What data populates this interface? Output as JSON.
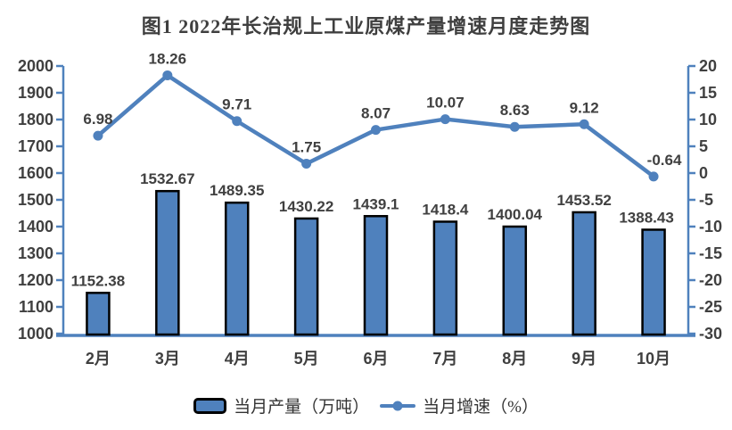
{
  "chart_data": {
    "type": "combo-bar-line",
    "title": "图1 2022年长治规上工业原煤产量增速月度走势图",
    "categories": [
      "2月",
      "3月",
      "4月",
      "5月",
      "6月",
      "7月",
      "8月",
      "9月",
      "10月"
    ],
    "series": [
      {
        "name": "当月产量（万吨）",
        "type": "bar",
        "axis": "left",
        "values": [
          1152.38,
          1532.67,
          1489.35,
          1430.22,
          1439.1,
          1418.4,
          1400.04,
          1453.52,
          1388.43
        ],
        "labels": [
          "1152.38",
          "1532.67",
          "1489.35",
          "1430.22",
          "1439.1",
          "1418.4",
          "1400.04",
          "1453.52",
          "1388.43"
        ]
      },
      {
        "name": "当月增速（%）",
        "type": "line",
        "axis": "right",
        "values": [
          6.98,
          18.26,
          9.71,
          1.75,
          8.07,
          10.07,
          8.63,
          9.12,
          -0.64
        ],
        "labels": [
          "6.98",
          "18.26",
          "9.71",
          "1.75",
          "8.07",
          "10.07",
          "8.63",
          "9.12",
          "-0.64"
        ]
      }
    ],
    "left_axis": {
      "min": 1000,
      "max": 2000,
      "step": 100,
      "ticks": [
        "1000",
        "1100",
        "1200",
        "1300",
        "1400",
        "1500",
        "1600",
        "1700",
        "1800",
        "1900",
        "2000"
      ]
    },
    "right_axis": {
      "min": -30,
      "max": 20,
      "step": 5,
      "ticks": [
        "-30",
        "-25",
        "-20",
        "-15",
        "-10",
        "-5",
        "0",
        "5",
        "10",
        "15",
        "20"
      ]
    },
    "legend": {
      "items": [
        {
          "label": "当月产量（万吨）",
          "marker": "bar"
        },
        {
          "label": "当月增速（%）",
          "marker": "line"
        }
      ]
    },
    "colors": {
      "bar_fill": "#4f81bd",
      "bar_border": "#000000",
      "line": "#4f81bd",
      "axis": "#4f81bd",
      "label": "#404040"
    },
    "grid": "off",
    "legend_position": "bottom"
  }
}
